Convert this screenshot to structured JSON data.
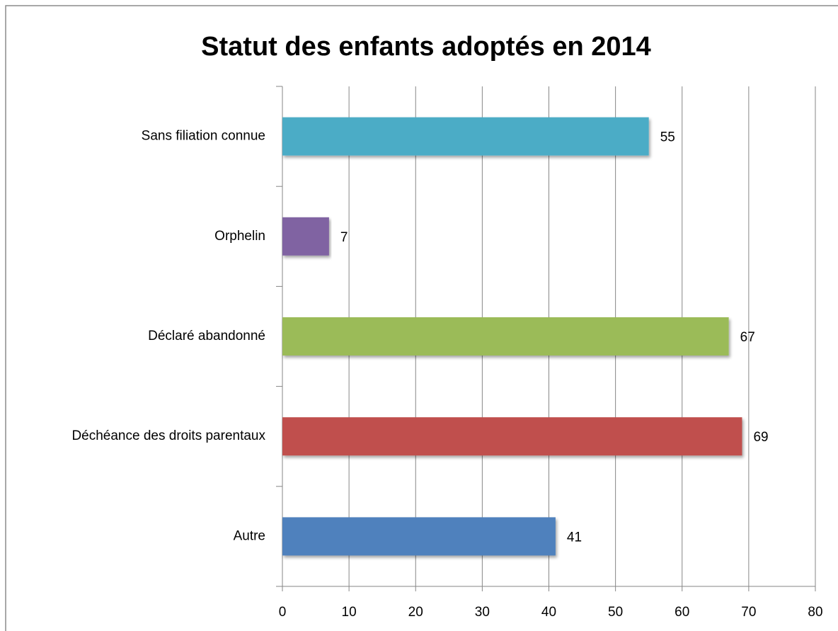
{
  "chart_data": {
    "type": "hbar",
    "title": "Statut des enfants adoptés en 2014",
    "categories": [
      "Sans filiation connue",
      "Orphelin",
      "Déclaré abandonné",
      "Déchéance des droits parentaux",
      "Autre"
    ],
    "values": [
      55,
      7,
      67,
      69,
      41
    ],
    "colors": [
      "#4bacc6",
      "#8064a2",
      "#9bbb59",
      "#c0504d",
      "#4f81bd"
    ],
    "xlim": [
      0,
      80
    ],
    "xticks": [
      0,
      10,
      20,
      30,
      40,
      50,
      60,
      70,
      80
    ],
    "grid": true
  }
}
